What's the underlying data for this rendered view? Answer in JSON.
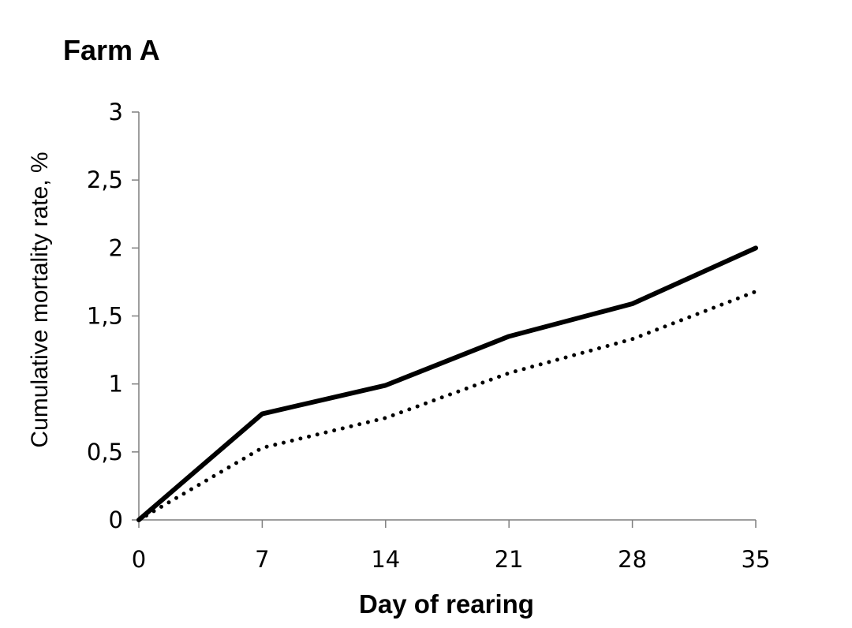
{
  "chart_data": {
    "type": "line",
    "title": "Farm A",
    "xlabel": "Day of rearing",
    "ylabel": "Cumulative mortality rate, %",
    "x": [
      0,
      7,
      14,
      21,
      28,
      35
    ],
    "x_tick_labels": [
      "0",
      "7",
      "14",
      "21",
      "28",
      "35"
    ],
    "y_tick_values": [
      0,
      0.5,
      1,
      1.5,
      2,
      2.5,
      3
    ],
    "y_tick_labels": [
      "0",
      "0,5",
      "1",
      "1,5",
      "2",
      "2,5",
      "3"
    ],
    "xlim": [
      0,
      35
    ],
    "ylim": [
      0,
      3
    ],
    "grid": false,
    "legend": "none",
    "series": [
      {
        "style": "solid",
        "color": "#000000",
        "values": [
          0,
          0.78,
          0.99,
          1.35,
          1.59,
          2.0
        ]
      },
      {
        "style": "dotted",
        "color": "#000000",
        "values": [
          0,
          0.53,
          0.75,
          1.08,
          1.33,
          1.68
        ]
      }
    ]
  }
}
